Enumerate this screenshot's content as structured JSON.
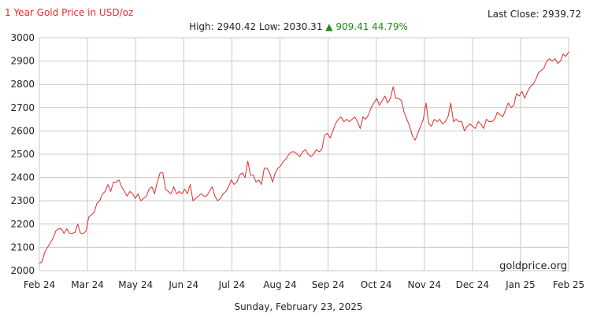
{
  "header": {
    "title": "1 Year Gold Price in USD/oz",
    "last_close_label": "Last Close:",
    "last_close_value": "2939.72",
    "high_label": "High:",
    "high_value": "2940.42",
    "low_label": "Low:",
    "low_value": "2030.31",
    "change_symbol": "▲",
    "change_value": "909.41",
    "change_percent": "44.79%"
  },
  "footer": {
    "date": "Sunday, February 23, 2025"
  },
  "watermark": "goldprice.org",
  "colors": {
    "line": "#e32b2b",
    "grid": "#c8c8c8",
    "title": "#e32b2b",
    "gain": "#1a8a1a"
  },
  "chart_data": {
    "type": "line",
    "title": "1 Year Gold Price in USD/oz",
    "xlabel": "",
    "ylabel": "",
    "ylim": [
      2000,
      3000
    ],
    "yticks": [
      2000,
      2100,
      2200,
      2300,
      2400,
      2500,
      2600,
      2700,
      2800,
      2900,
      3000
    ],
    "xticks": [
      "Feb 24",
      "Mar 24",
      "May 24",
      "Jun 24",
      "Jul 24",
      "Aug 24",
      "Sep 24",
      "Oct 24",
      "Nov 24",
      "Dec 24",
      "Jan 25",
      "Feb 25"
    ],
    "grid": true,
    "legend": "none",
    "series": [
      {
        "values": [
          2030,
          2040,
          2080,
          2100,
          2120,
          2140,
          2170,
          2180,
          2180,
          2160,
          2180,
          2160,
          2160,
          2165,
          2200,
          2160,
          2160,
          2170,
          2230,
          2240,
          2250,
          2290,
          2300,
          2330,
          2340,
          2370,
          2340,
          2380,
          2380,
          2390,
          2360,
          2340,
          2320,
          2340,
          2330,
          2310,
          2330,
          2300,
          2310,
          2320,
          2350,
          2360,
          2330,
          2380,
          2420,
          2420,
          2350,
          2340,
          2330,
          2360,
          2330,
          2340,
          2330,
          2350,
          2330,
          2370,
          2300,
          2310,
          2320,
          2330,
          2320,
          2320,
          2340,
          2360,
          2320,
          2300,
          2310,
          2330,
          2340,
          2360,
          2390,
          2370,
          2380,
          2410,
          2420,
          2400,
          2470,
          2410,
          2410,
          2380,
          2390,
          2370,
          2440,
          2440,
          2420,
          2380,
          2420,
          2440,
          2450,
          2470,
          2480,
          2500,
          2510,
          2510,
          2500,
          2490,
          2510,
          2520,
          2500,
          2490,
          2500,
          2520,
          2510,
          2520,
          2580,
          2590,
          2570,
          2600,
          2630,
          2650,
          2660,
          2640,
          2650,
          2640,
          2650,
          2660,
          2640,
          2610,
          2660,
          2650,
          2670,
          2700,
          2720,
          2740,
          2710,
          2730,
          2750,
          2720,
          2740,
          2790,
          2740,
          2740,
          2730,
          2680,
          2650,
          2620,
          2580,
          2560,
          2590,
          2620,
          2650,
          2720,
          2630,
          2620,
          2650,
          2640,
          2650,
          2630,
          2640,
          2660,
          2720,
          2640,
          2650,
          2640,
          2640,
          2600,
          2620,
          2630,
          2620,
          2610,
          2640,
          2630,
          2610,
          2650,
          2640,
          2640,
          2650,
          2680,
          2670,
          2660,
          2690,
          2720,
          2700,
          2710,
          2760,
          2750,
          2770,
          2740,
          2770,
          2790,
          2800,
          2820,
          2850,
          2860,
          2870,
          2900,
          2910,
          2900,
          2910,
          2890,
          2900,
          2930,
          2920,
          2940
        ]
      }
    ]
  }
}
